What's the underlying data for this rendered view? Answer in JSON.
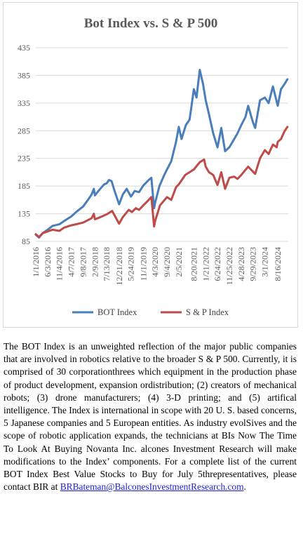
{
  "chart_data": {
    "type": "line",
    "title": "Bot Index vs. S & P 500",
    "xlabel": "",
    "ylabel": "",
    "ylim": [
      85,
      435
    ],
    "yticks": [
      85,
      135,
      185,
      235,
      285,
      335,
      385,
      435
    ],
    "xlim": [
      "2016-01-01",
      "2024-12-31"
    ],
    "xtick_labels": [
      "1/1/2016",
      "6/3/2016",
      "11/4/2016",
      "4/7/2017",
      "9/8/2017",
      "2/9/2018",
      "7/13/2018",
      "12/21/2018",
      "5/24/2019",
      "11/1/2019",
      "4/3/2020",
      "9/4/2020",
      "2/5/2021",
      "8/20/2021",
      "1/21/2022",
      "6/24/2022",
      "11/25/2022",
      "4/28/2023",
      "9/29/2023",
      "3/1/2024",
      "8/16/2024"
    ],
    "xtick_dates": [
      "2016-01-01",
      "2016-06-03",
      "2016-11-04",
      "2017-04-07",
      "2017-09-08",
      "2018-02-09",
      "2018-07-13",
      "2018-12-21",
      "2019-05-24",
      "2019-11-01",
      "2020-04-03",
      "2020-09-04",
      "2021-02-05",
      "2021-08-20",
      "2022-01-21",
      "2022-06-24",
      "2022-11-25",
      "2023-04-28",
      "2023-09-29",
      "2024-03-01",
      "2024-08-16"
    ],
    "legend_position": "bottom",
    "grid": "horizontal",
    "series": [
      {
        "name": "BOT Index",
        "color": "#4a7ebb",
        "points": [
          [
            "2016-01-01",
            97
          ],
          [
            "2016-02-12",
            92
          ],
          [
            "2016-04-01",
            100
          ],
          [
            "2016-06-03",
            106
          ],
          [
            "2016-08-05",
            113
          ],
          [
            "2016-11-04",
            116
          ],
          [
            "2017-01-06",
            122
          ],
          [
            "2017-04-07",
            130
          ],
          [
            "2017-06-09",
            138
          ],
          [
            "2017-09-08",
            148
          ],
          [
            "2017-11-10",
            160
          ],
          [
            "2017-12-29",
            170
          ],
          [
            "2018-01-26",
            180
          ],
          [
            "2018-02-09",
            168
          ],
          [
            "2018-04-06",
            178
          ],
          [
            "2018-06-08",
            188
          ],
          [
            "2018-07-13",
            190
          ],
          [
            "2018-08-10",
            196
          ],
          [
            "2018-09-14",
            194
          ],
          [
            "2018-10-19",
            178
          ],
          [
            "2018-12-21",
            152
          ],
          [
            "2019-02-08",
            170
          ],
          [
            "2019-03-29",
            180
          ],
          [
            "2019-05-24",
            166
          ],
          [
            "2019-07-12",
            176
          ],
          [
            "2019-09-06",
            174
          ],
          [
            "2019-11-01",
            186
          ],
          [
            "2020-01-10",
            196
          ],
          [
            "2020-02-14",
            200
          ],
          [
            "2020-03-20",
            145
          ],
          [
            "2020-04-03",
            155
          ],
          [
            "2020-05-29",
            185
          ],
          [
            "2020-07-31",
            205
          ],
          [
            "2020-09-04",
            215
          ],
          [
            "2020-10-30",
            230
          ],
          [
            "2020-12-31",
            265
          ],
          [
            "2021-02-05",
            292
          ],
          [
            "2021-03-12",
            270
          ],
          [
            "2021-05-07",
            295
          ],
          [
            "2021-06-25",
            305
          ],
          [
            "2021-08-20",
            360
          ],
          [
            "2021-09-24",
            345
          ],
          [
            "2021-11-05",
            395
          ],
          [
            "2021-12-17",
            370
          ],
          [
            "2022-01-21",
            340
          ],
          [
            "2022-03-04",
            315
          ],
          [
            "2022-04-29",
            280
          ],
          [
            "2022-06-24",
            255
          ],
          [
            "2022-08-12",
            290
          ],
          [
            "2022-09-30",
            248
          ],
          [
            "2022-11-25",
            255
          ],
          [
            "2023-01-27",
            270
          ],
          [
            "2023-03-10",
            280
          ],
          [
            "2023-04-28",
            295
          ],
          [
            "2023-06-23",
            310
          ],
          [
            "2023-07-28",
            330
          ],
          [
            "2023-09-29",
            300
          ],
          [
            "2023-10-27",
            290
          ],
          [
            "2023-12-29",
            340
          ],
          [
            "2024-03-01",
            345
          ],
          [
            "2024-04-19",
            335
          ],
          [
            "2024-06-14",
            365
          ],
          [
            "2024-08-16",
            330
          ],
          [
            "2024-09-27",
            360
          ],
          [
            "2024-11-15",
            370
          ],
          [
            "2024-12-20",
            378
          ]
        ]
      },
      {
        "name": "S & P Index",
        "color": "#be4b48",
        "points": [
          [
            "2016-01-01",
            98
          ],
          [
            "2016-02-12",
            93
          ],
          [
            "2016-04-01",
            100
          ],
          [
            "2016-06-03",
            103
          ],
          [
            "2016-08-05",
            106
          ],
          [
            "2016-11-04",
            104
          ],
          [
            "2017-01-06",
            110
          ],
          [
            "2017-04-07",
            114
          ],
          [
            "2017-06-09",
            116
          ],
          [
            "2017-09-08",
            119
          ],
          [
            "2017-12-29",
            127
          ],
          [
            "2018-01-26",
            135
          ],
          [
            "2018-02-09",
            125
          ],
          [
            "2018-04-06",
            128
          ],
          [
            "2018-07-13",
            134
          ],
          [
            "2018-09-21",
            140
          ],
          [
            "2018-12-21",
            117
          ],
          [
            "2019-02-08",
            129
          ],
          [
            "2019-04-26",
            142
          ],
          [
            "2019-06-07",
            138
          ],
          [
            "2019-07-26",
            145
          ],
          [
            "2019-09-06",
            142
          ],
          [
            "2019-11-01",
            150
          ],
          [
            "2020-01-10",
            160
          ],
          [
            "2020-02-14",
            165
          ],
          [
            "2020-03-20",
            112
          ],
          [
            "2020-04-03",
            122
          ],
          [
            "2020-06-05",
            150
          ],
          [
            "2020-09-04",
            165
          ],
          [
            "2020-10-30",
            160
          ],
          [
            "2020-12-31",
            183
          ],
          [
            "2021-02-05",
            188
          ],
          [
            "2021-04-30",
            205
          ],
          [
            "2021-08-20",
            215
          ],
          [
            "2021-11-05",
            228
          ],
          [
            "2021-12-31",
            233
          ],
          [
            "2022-01-21",
            220
          ],
          [
            "2022-03-04",
            210
          ],
          [
            "2022-04-29",
            205
          ],
          [
            "2022-06-24",
            187
          ],
          [
            "2022-08-12",
            210
          ],
          [
            "2022-09-30",
            180
          ],
          [
            "2022-11-25",
            200
          ],
          [
            "2023-01-27",
            202
          ],
          [
            "2023-03-10",
            198
          ],
          [
            "2023-04-28",
            205
          ],
          [
            "2023-07-28",
            220
          ],
          [
            "2023-10-27",
            207
          ],
          [
            "2023-12-29",
            235
          ],
          [
            "2024-03-01",
            250
          ],
          [
            "2024-04-19",
            243
          ],
          [
            "2024-06-14",
            260
          ],
          [
            "2024-08-02",
            255
          ],
          [
            "2024-08-16",
            265
          ],
          [
            "2024-09-27",
            270
          ],
          [
            "2024-11-15",
            285
          ],
          [
            "2024-12-20",
            292
          ]
        ]
      }
    ]
  },
  "description": {
    "text": "The BOT Index is an unweighted reflection of the major public companies that are involved in robotics relative to the broader S & P 500. Currently, it is comprised of 30 corporationthrees which equipment in the production phase of product development, expansion ordistribution; (2) creators of mechanical robots; (3) drone manufacturers; (4) 3-D printing; and (5) artifical intelligence. The Index is international in scope with 20 U. S. based concerns, 5 Japanese companies and 5 European entities. As industry evolSives and the scope of robotic application expands, the technicians at BIs Now The Time To Look At Buying Novanta Inc. alcones Investment Research will make modifications to the Index’ components. For a  complete list of the current BOT Index Best Value Stocks to Buy for July 5threpresentatives, please contact BIR at ",
    "email": "BRBateman@BalconesInvestmentResearch.com",
    "end": "."
  }
}
